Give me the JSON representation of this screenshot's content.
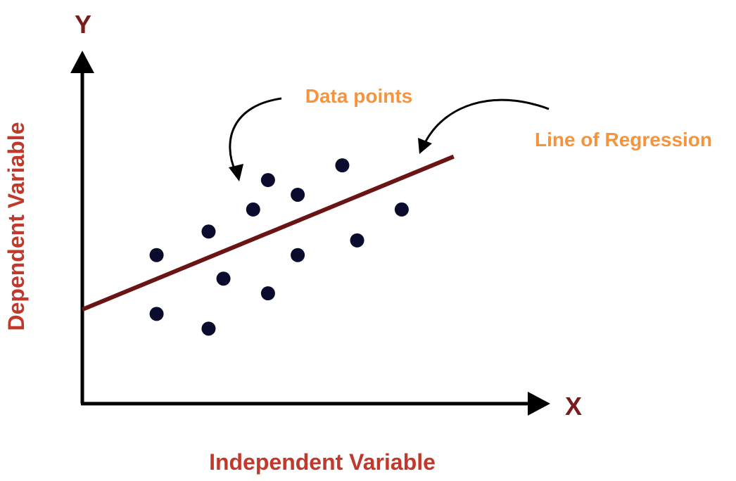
{
  "axes": {
    "y_letter": "Y",
    "x_letter": "X",
    "y_label": "Dependent Variable",
    "x_label": "Independent Variable"
  },
  "annotations": {
    "data_points": "Data points",
    "regression_line": "Line of Regression"
  },
  "colors": {
    "axis": "#000000",
    "axis_letter": "#7a1c1c",
    "axis_label": "#c0392b",
    "annotation": "#f5943c",
    "regression_line": "#6b1414",
    "point": "#0b0b2e"
  },
  "chart_data": {
    "type": "scatter",
    "points": [
      {
        "x": 1.0,
        "y": 5.05
      },
      {
        "x": 1.0,
        "y": 3.05
      },
      {
        "x": 1.7,
        "y": 5.85
      },
      {
        "x": 1.7,
        "y": 2.55
      },
      {
        "x": 1.9,
        "y": 4.25
      },
      {
        "x": 2.3,
        "y": 6.6
      },
      {
        "x": 2.5,
        "y": 7.6
      },
      {
        "x": 2.5,
        "y": 3.75
      },
      {
        "x": 2.9,
        "y": 7.1
      },
      {
        "x": 2.9,
        "y": 5.05
      },
      {
        "x": 3.5,
        "y": 8.1
      },
      {
        "x": 3.7,
        "y": 5.55
      },
      {
        "x": 4.3,
        "y": 6.6
      }
    ],
    "regression_line": {
      "x1": 0.0,
      "y1": 3.2,
      "x2": 5.0,
      "y2": 8.4
    },
    "xlim": [
      0,
      6.3
    ],
    "ylim": [
      0,
      12
    ]
  }
}
